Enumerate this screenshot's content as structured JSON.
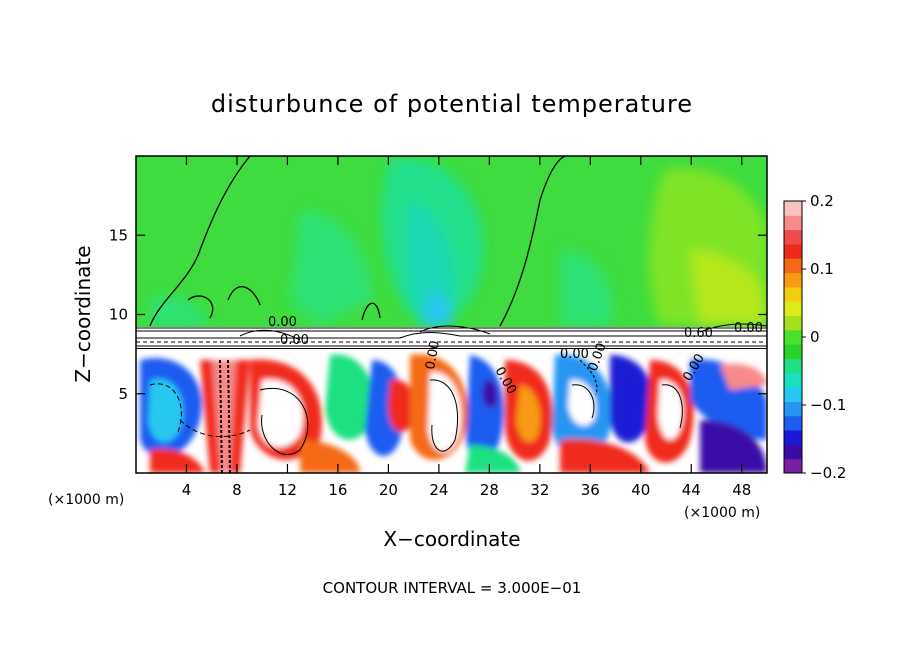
{
  "chart_data": {
    "type": "heatmap",
    "title": "disturbunce of potential temperature",
    "xlabel": "X−coordinate",
    "ylabel": "Z−coordinate",
    "x_unit_left": "(×1000 m)",
    "x_unit_right": "(×1000 m)",
    "xlim": [
      0,
      50
    ],
    "ylim": [
      0,
      20
    ],
    "x_ticks": [
      4,
      8,
      12,
      16,
      20,
      24,
      28,
      32,
      36,
      40,
      44,
      48
    ],
    "y_ticks": [
      5,
      10,
      15
    ],
    "colorbar": {
      "range": [
        -0.2,
        0.2
      ],
      "ticks": [
        0.2,
        0.1,
        0,
        -0.1,
        -0.2
      ],
      "tick_labels": [
        "0.2",
        "0.1",
        "0",
        "−0.1",
        "−0.2"
      ],
      "colors": [
        "#7a1fa2",
        "#3b0aa8",
        "#1a1ad6",
        "#1f5cf0",
        "#2596f2",
        "#26c8f0",
        "#19e0c2",
        "#1ee082",
        "#28d428",
        "#4ce02a",
        "#a4e01e",
        "#dcec16",
        "#f4cc10",
        "#f89a12",
        "#f46a14",
        "#f02a1a",
        "#f04a4a",
        "#f88a8a",
        "#fbc0c0"
      ]
    },
    "contour_labels": [
      "0.00",
      "0.00",
      "0.00",
      "0.00",
      "0.00",
      "0.00",
      "0.00",
      "0.60",
      "0.00"
    ],
    "annotation": "CONTOUR INTERVAL = 3.000E−01"
  }
}
